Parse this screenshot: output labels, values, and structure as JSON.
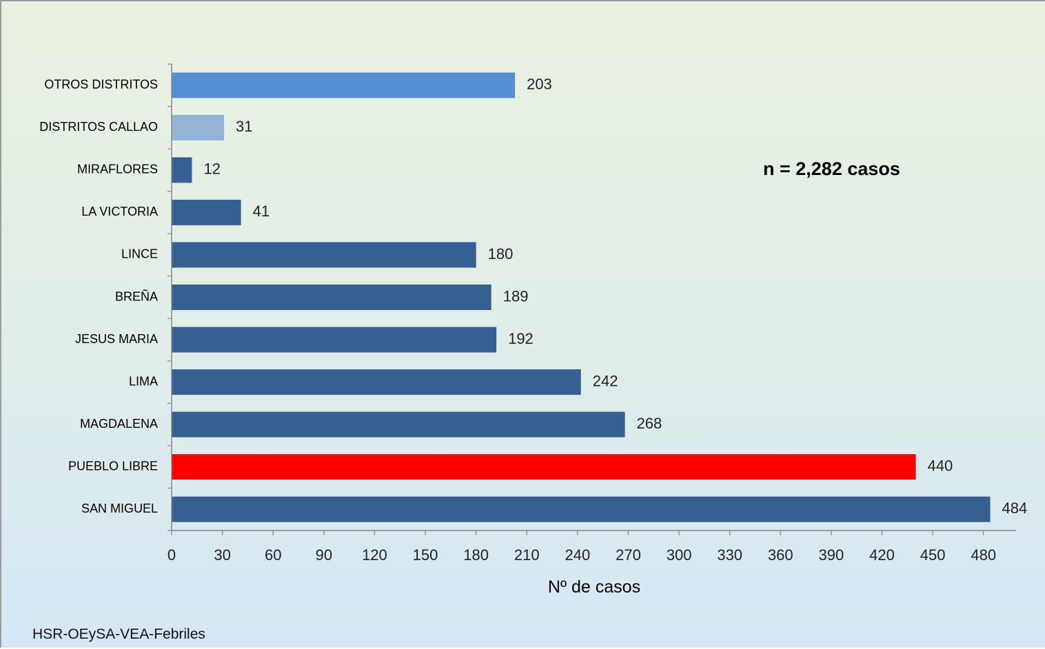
{
  "chart_data": {
    "type": "bar",
    "orientation": "horizontal",
    "categories": [
      "OTROS DISTRITOS",
      "DISTRITOS CALLAO",
      "MIRAFLORES",
      "LA VICTORIA",
      "LINCE",
      "BREÑA",
      "JESUS MARIA",
      "LIMA",
      "MAGDALENA",
      "PUEBLO LIBRE",
      "SAN MIGUEL"
    ],
    "values": [
      203,
      31,
      12,
      41,
      180,
      189,
      192,
      242,
      268,
      440,
      484
    ],
    "bar_colors": [
      "#558ed5",
      "#95b3d7",
      "#376092",
      "#376092",
      "#376092",
      "#376092",
      "#376092",
      "#376092",
      "#376092",
      "#ff0000",
      "#376092"
    ],
    "xlabel": "Nº de casos",
    "ylabel": "",
    "xlim": [
      0,
      500
    ],
    "xticks": [
      0,
      30,
      60,
      90,
      120,
      150,
      180,
      210,
      240,
      270,
      300,
      330,
      360,
      390,
      420,
      450,
      480
    ],
    "grid": false,
    "annotation": "n = 2,282 casos",
    "source_note": "HSR-OEySA-VEA-Febriles"
  }
}
